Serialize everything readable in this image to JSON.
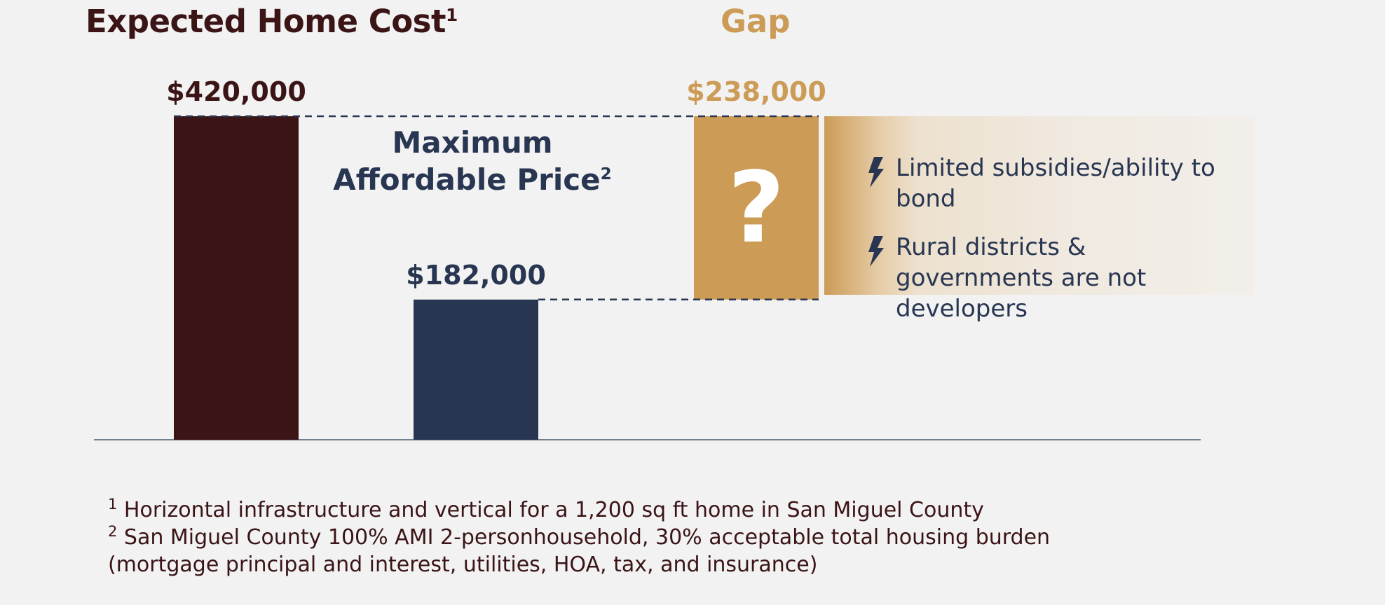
{
  "headings": {
    "expected_cost": "Expected Home Cost",
    "expected_cost_sup": "1",
    "gap": "Gap",
    "max_price_line1": "Maximum",
    "max_price_line2": "Affordable Price",
    "max_price_sup": "2"
  },
  "chart_data": {
    "type": "bar",
    "categories": [
      "Expected Home Cost",
      "Maximum Affordable Price",
      "Gap"
    ],
    "values": [
      420000,
      182000,
      238000
    ],
    "data_labels": [
      "$420,000",
      "$182,000",
      "$238,000"
    ],
    "gap_symbol": "?",
    "title": "",
    "xlabel": "",
    "ylabel": "",
    "ylim": [
      0,
      420000
    ],
    "grid": false,
    "colors": {
      "expected_cost": "#3b1416",
      "max_affordable": "#283652",
      "gap": "#cc9c57"
    }
  },
  "gap_notes": [
    {
      "icon": "lightning-bolt-icon",
      "text": "Limited subsidies/ability to bond"
    },
    {
      "icon": "lightning-bolt-icon",
      "text": "Rural districts & governments are not developers"
    }
  ],
  "footnotes": [
    {
      "marker": "1",
      "text": "Horizontal infrastructure and vertical for a 1,200 sq ft home in San Miguel County"
    },
    {
      "marker": "2",
      "text": "San Miguel County 100% AMI 2-personhousehold, 30% acceptable total housing burden"
    },
    {
      "marker": "",
      "text": "(mortgage principal and interest, utilities, HOA, tax, and insurance)"
    }
  ],
  "colors": {
    "background": "#f2f2f2",
    "maroon": "#3b1416",
    "navy": "#283652",
    "gold": "#cc9c57",
    "dash": "#283652"
  }
}
